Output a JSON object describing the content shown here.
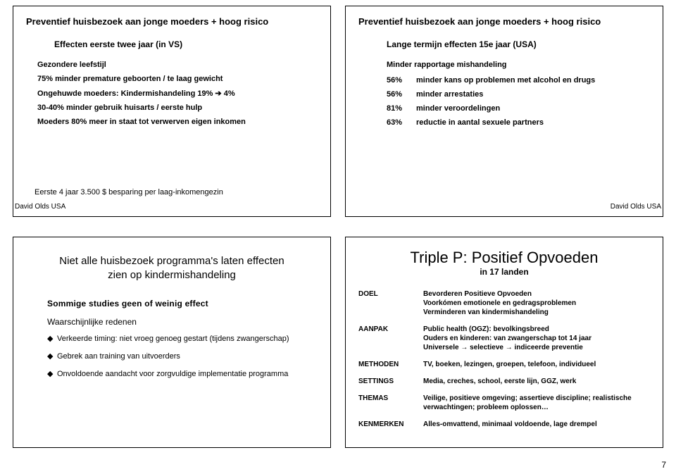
{
  "page_number": "7",
  "slide1": {
    "title": "Preventief huisbezoek aan jonge moeders + hoog risico",
    "subtitle": "Effecten eerste twee jaar (in VS)",
    "lines": [
      "Gezondere leefstijl",
      "75% minder premature geboorten / te laag gewicht",
      "Ongehuwde moeders: Kindermishandeling 19% ➔ 4%",
      "30-40% minder gebruik huisarts / eerste hulp",
      "Moeders 80% meer in staat tot verwerven eigen inkomen"
    ],
    "footnote": "Eerste 4 jaar 3.500 $  besparing per laag-inkomengezin",
    "attrib": "David Olds  USA"
  },
  "slide2": {
    "title": "Preventief huisbezoek aan jonge moeders + hoog risico",
    "subtitle": "Lange termijn effecten 15e jaar  (USA)",
    "header": "Minder rapportage mishandeling",
    "rows": [
      {
        "pct": "56%",
        "txt": "minder kans op problemen met alcohol en drugs"
      },
      {
        "pct": "56%",
        "txt": "minder arrestaties"
      },
      {
        "pct": "81%",
        "txt": "minder veroordelingen"
      },
      {
        "pct": "63%",
        "txt": "reductie in aantal sexuele partners"
      }
    ],
    "attrib": "David Olds  USA"
  },
  "slide3": {
    "block_title": "Niet alle huisbezoek programma's laten effecten zien op kindermishandeling",
    "sec_head": "Sommige studies geen of weinig effect",
    "reason_head": "Waarschijnlijke redenen",
    "bullets": [
      "Verkeerde timing: niet vroeg genoeg gestart (tijdens zwangerschap)",
      "Gebrek aan training van uitvoerders",
      "Onvoldoende aandacht voor zorgvuldige implementatie programma"
    ]
  },
  "slide4": {
    "big_title": "Triple P: Positief Opvoeden",
    "big_sub": "in 17 landen",
    "rows": [
      {
        "label": "DOEL",
        "val": "Bevorderen Positieve Opvoeden\nVoorkómen emotionele en gedragsproblemen\nVerminderen van kindermishandeling"
      },
      {
        "label": "AANPAK",
        "val": "Public health (OGZ): bevolkingsbreed\nOuders en kinderen: van zwangerschap tot 14 jaar\nUniversele → selectieve → indiceerde preventie"
      },
      {
        "label": "METHODEN",
        "val": "TV, boeken, lezingen, groepen, telefoon, individueel"
      },
      {
        "label": "SETTINGS",
        "val": "Media, creches, school,  eerste lijn, GGZ, werk"
      },
      {
        "label": "THEMAS",
        "val": "Veilige, positieve omgeving; assertieve discipline; realistische verwachtingen; probleem oplossen…"
      },
      {
        "label": "KENMERKEN",
        "val": "Alles-omvattend, minimaal voldoende, lage drempel"
      }
    ]
  }
}
